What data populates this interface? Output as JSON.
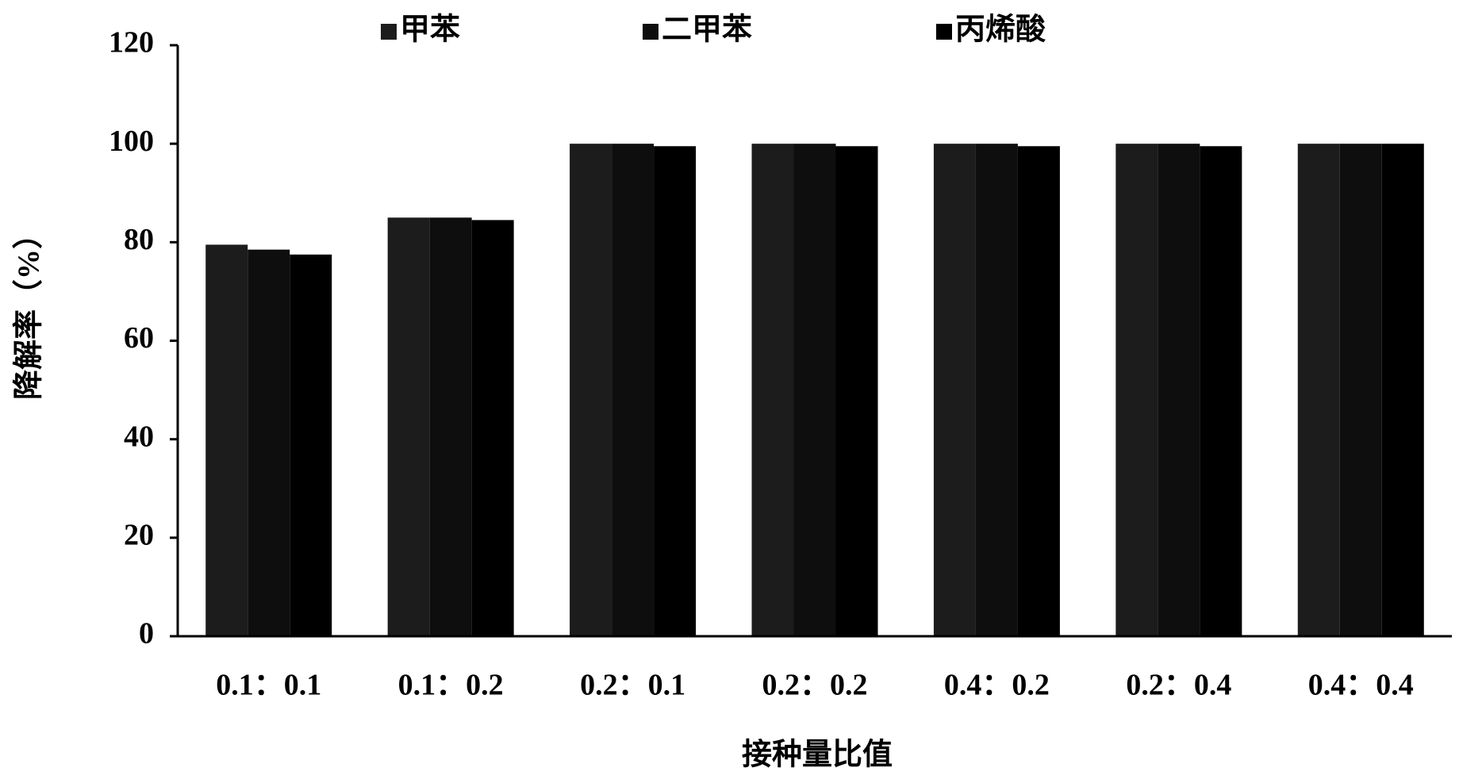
{
  "chart_data": {
    "type": "bar",
    "x_label": "接种量比值",
    "y_label": "降解率（%）",
    "categories": [
      "0.1：0.1",
      "0.1：0.2",
      "0.2：0.1",
      "0.2：0.2",
      "0.4：0.2",
      "0.2：0.4",
      "0.4：0.4"
    ],
    "series": [
      {
        "name": "甲苯",
        "color": "#1c1c1c",
        "values": [
          79.5,
          85,
          100,
          100,
          100,
          100,
          100
        ]
      },
      {
        "name": "二甲苯",
        "color": "#0e0e0e",
        "values": [
          78.5,
          85,
          100,
          100,
          100,
          100,
          100
        ]
      },
      {
        "name": "丙烯酸",
        "color": "#000000",
        "values": [
          77.5,
          84.5,
          99.5,
          99.5,
          99.5,
          99.5,
          100
        ]
      }
    ],
    "ylim": [
      0,
      120
    ],
    "yticks": [
      0,
      20,
      40,
      60,
      80,
      100,
      120
    ]
  }
}
